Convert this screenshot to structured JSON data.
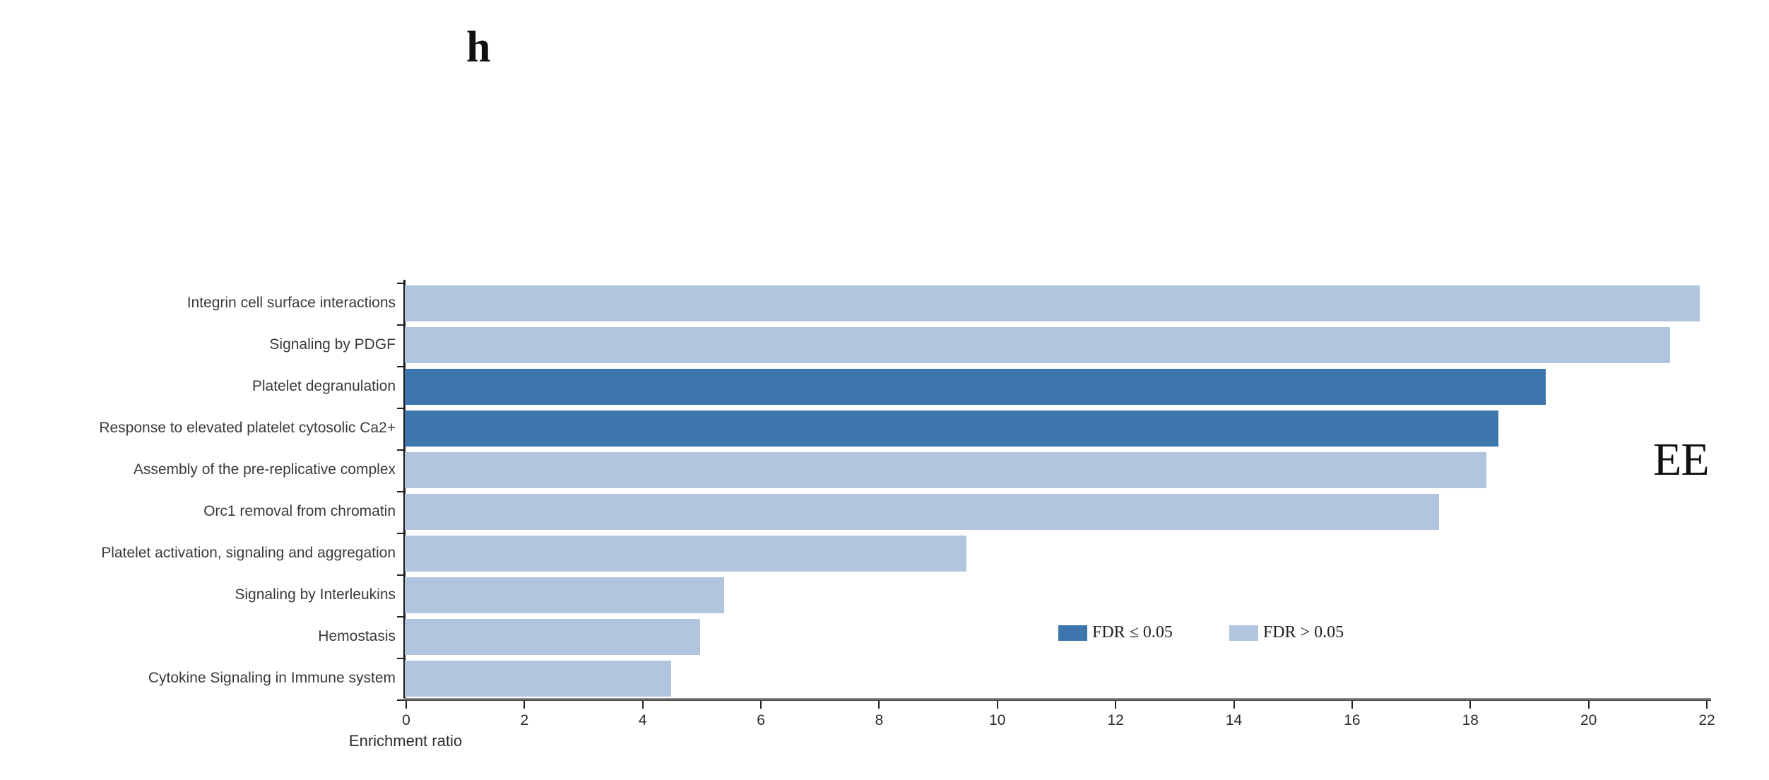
{
  "panel_label": "h",
  "panel_annotation": "EE",
  "chart_data": {
    "type": "bar",
    "orientation": "horizontal",
    "title": "",
    "xlabel": "Enrichment ratio",
    "ylabel": "",
    "xlim": [
      0,
      22
    ],
    "xticks": [
      0,
      2,
      4,
      6,
      8,
      10,
      12,
      14,
      16,
      18,
      20,
      22
    ],
    "grid": false,
    "legend_position": "inside-lower-right",
    "categories": [
      "Integrin cell surface interactions",
      "Signaling by PDGF",
      "Platelet degranulation",
      "Response to elevated platelet cytosolic Ca2+",
      "Assembly of the pre-replicative complex",
      "Orc1 removal from chromatin",
      "Platelet activation, signaling and aggregation",
      "Signaling by Interleukins",
      "Hemostasis",
      "Cytokine Signaling in Immune system"
    ],
    "values": [
      21.9,
      21.4,
      19.3,
      18.5,
      18.3,
      17.5,
      9.5,
      5.4,
      5.0,
      4.5
    ],
    "fdr_significant": [
      false,
      false,
      true,
      true,
      false,
      false,
      false,
      false,
      false,
      false
    ],
    "legend": [
      {
        "label": "FDR ≤ 0.05",
        "significant": true
      },
      {
        "label": "FDR > 0.05",
        "significant": false
      }
    ],
    "colors": {
      "significant": "#3c76ac",
      "not_significant": "#b2c5df"
    }
  }
}
